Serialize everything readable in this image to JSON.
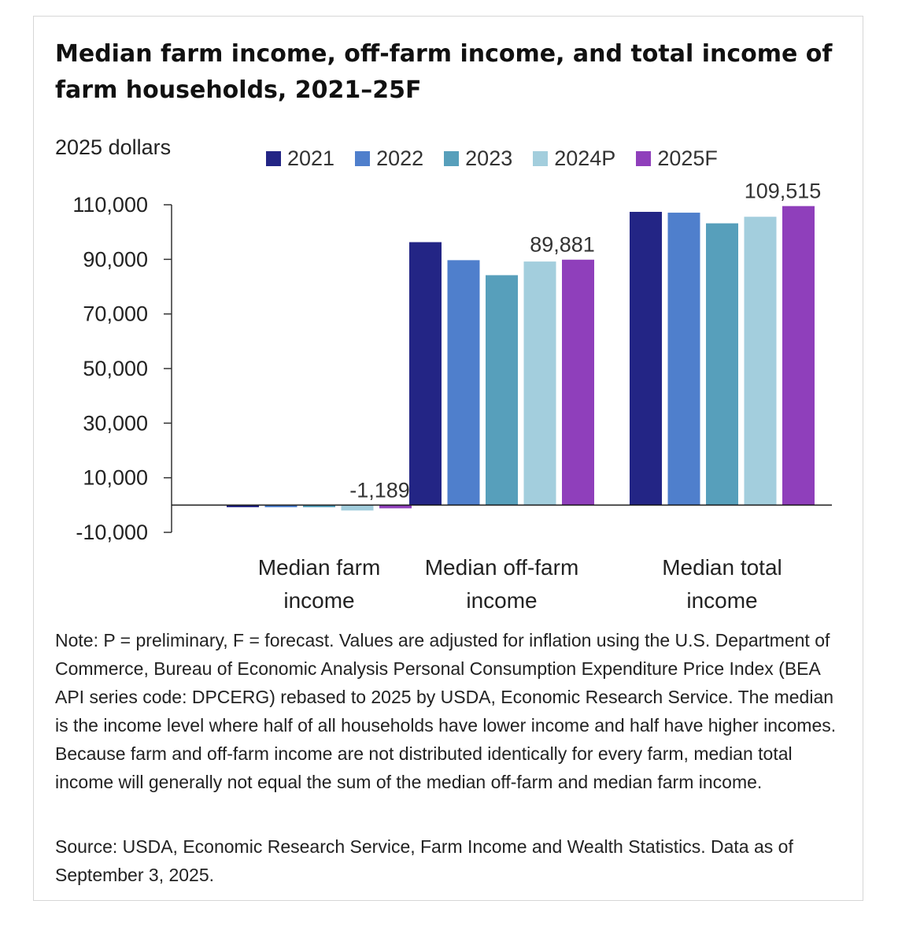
{
  "chart_data": {
    "type": "bar",
    "title": "Median farm income, off-farm income, and total income of farm households, 2021–25F",
    "ylabel": "2025 dollars",
    "xlabel": "",
    "ylim": [
      -10000,
      110000
    ],
    "yticks": [
      110000,
      90000,
      70000,
      50000,
      30000,
      10000,
      -10000
    ],
    "ytick_labels": [
      "110,000",
      "90,000",
      "70,000",
      "50,000",
      "30,000",
      "10,000",
      "-10,000"
    ],
    "categories": [
      [
        "Median farm",
        "income"
      ],
      [
        "Median off-farm",
        "income"
      ],
      [
        "Median total",
        "income"
      ]
    ],
    "series": [
      {
        "name": "2021",
        "color": "#232585",
        "values": [
          -800,
          96300,
          107400
        ]
      },
      {
        "name": "2022",
        "color": "#4f7fcc",
        "values": [
          -800,
          89700,
          107100
        ]
      },
      {
        "name": "2023",
        "color": "#579fbb",
        "values": [
          -800,
          84200,
          103200
        ]
      },
      {
        "name": "2024P",
        "color": "#a3cedd",
        "values": [
          -2000,
          89200,
          105600
        ]
      },
      {
        "name": "2025F",
        "color": "#8f3fbb",
        "values": [
          -1189,
          89881,
          109515
        ]
      }
    ],
    "data_labels": [
      {
        "series": "2025F",
        "category_index": 0,
        "text": "-1,189"
      },
      {
        "series": "2025F",
        "category_index": 1,
        "text": "89,881"
      },
      {
        "series": "2025F",
        "category_index": 2,
        "text": "109,515"
      }
    ],
    "grid": false,
    "legend_position": "top"
  },
  "note": "Note: P = preliminary, F = forecast.  Values are adjusted for inflation using the U.S. Department of Commerce, Bureau of Economic Analysis Personal Consumption Expenditure Price Index (BEA API series code: DPCERG) rebased to 2025 by USDA, Economic Research Service. The median is the income level where half of all households have lower income and half have higher incomes. Because farm and off-farm income are not distributed identically for every farm, median total income will generally not equal the sum of the median off-farm and median farm income.",
  "source": "Source: USDA, Economic Research Service, Farm Income and Wealth Statistics. Data as of September 3, 2025."
}
